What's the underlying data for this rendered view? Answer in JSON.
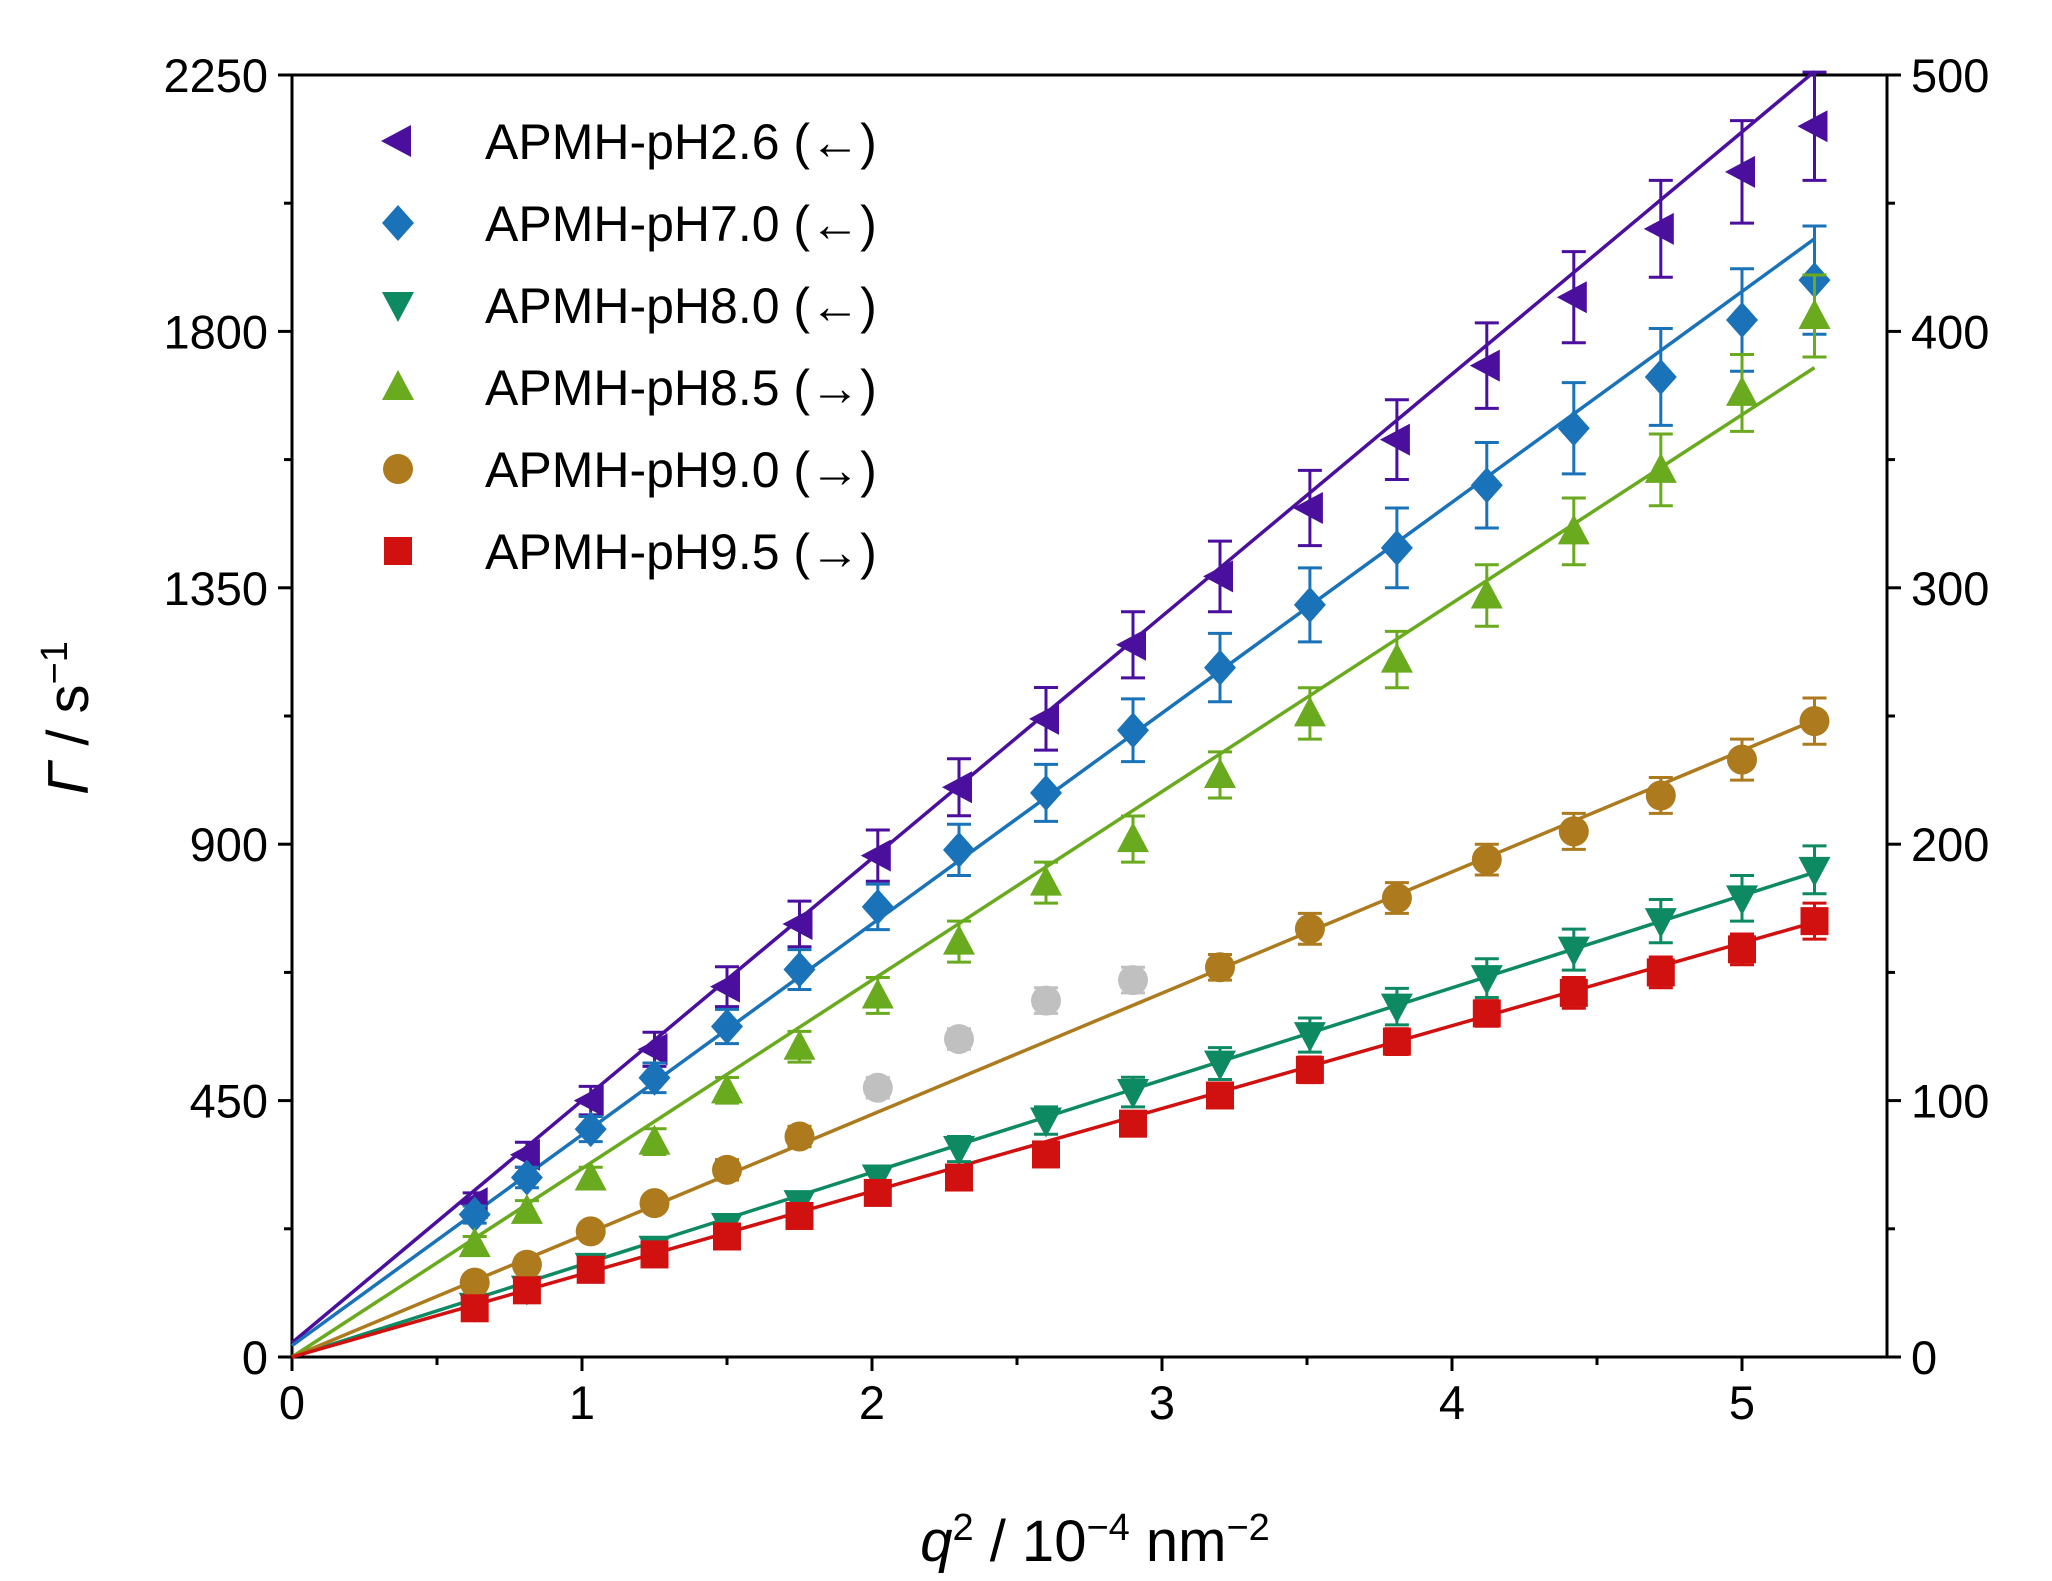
{
  "chart_data": {
    "type": "scatter",
    "title": "",
    "xlabel": {
      "var": "q",
      "sup": "2",
      "rest": " / 10",
      "sup2": "−4",
      "unit": " nm",
      "sup3": "−2"
    },
    "ylabel": {
      "var": "Γ",
      "rest": " / s",
      "sup": "−1"
    },
    "xlim": [
      0,
      5.5
    ],
    "ylim_left": [
      0,
      2250
    ],
    "ylim_right": [
      0,
      500
    ],
    "x_ticks": [
      0,
      1,
      2,
      3,
      4,
      5
    ],
    "y_left_ticks": [
      0,
      450,
      900,
      1350,
      1800,
      2250
    ],
    "y_right_ticks": [
      0,
      100,
      200,
      300,
      400,
      500
    ],
    "x": [
      0.63,
      0.81,
      1.03,
      1.25,
      1.5,
      1.75,
      2.02,
      2.3,
      2.6,
      2.9,
      3.2,
      3.51,
      3.81,
      4.12,
      4.42,
      4.72,
      5.0,
      5.25
    ],
    "series": [
      {
        "name": "APMH-pH2.6 (←)",
        "axis": "left",
        "color": "#4B0F9E",
        "marker": "tri-left",
        "values": [
          270,
          355,
          450,
          540,
          650,
          760,
          880,
          1000,
          1120,
          1250,
          1370,
          1490,
          1610,
          1740,
          1860,
          1980,
          2080,
          2160
        ],
        "errors": [
          18,
          22,
          25,
          30,
          35,
          40,
          45,
          50,
          55,
          58,
          62,
          66,
          70,
          75,
          80,
          85,
          90,
          95
        ],
        "fit": {
          "slope": 425,
          "intercept": 25
        }
      },
      {
        "name": "APMH-pH7.0 (←)",
        "axis": "left",
        "color": "#1A73B8",
        "marker": "diamond",
        "values": [
          250,
          315,
          400,
          490,
          580,
          680,
          790,
          890,
          990,
          1100,
          1210,
          1320,
          1420,
          1530,
          1630,
          1720,
          1820,
          1890
        ],
        "errors": [
          15,
          18,
          22,
          26,
          30,
          35,
          40,
          45,
          50,
          55,
          60,
          65,
          70,
          75,
          80,
          85,
          90,
          95
        ],
        "fit": {
          "slope": 370,
          "intercept": 20
        }
      },
      {
        "name": "APMH-pH8.0 (←)",
        "axis": "left",
        "color": "#0E8A63",
        "marker": "tri-down",
        "values": [
          90,
          120,
          160,
          190,
          230,
          270,
          315,
          365,
          415,
          465,
          515,
          565,
          615,
          665,
          715,
          765,
          805,
          855
        ],
        "errors": [
          10,
          12,
          14,
          15,
          17,
          18,
          20,
          22,
          24,
          26,
          28,
          30,
          32,
          34,
          36,
          38,
          40,
          42
        ],
        "fit": {
          "slope": 162,
          "intercept": 0
        }
      },
      {
        "name": "APMH-pH8.5 (→)",
        "axis": "right",
        "color": "#6AAA1E",
        "marker": "tri-up",
        "values": [
          44,
          57,
          70,
          84,
          104,
          121,
          141,
          162,
          185,
          202,
          227,
          251,
          272,
          297,
          322,
          346,
          376,
          406
        ],
        "errors": [
          3,
          4,
          4,
          5,
          5,
          6,
          7,
          8,
          8,
          9,
          9,
          10,
          11,
          12,
          13,
          14,
          15,
          16
        ],
        "fit": {
          "slope": 73.5,
          "intercept": 0
        }
      },
      {
        "name": "APMH-pH9.0 (→)",
        "axis": "right",
        "color": "#AD7A1E",
        "marker": "circle",
        "values": [
          29,
          36,
          49,
          60,
          73,
          86,
          null,
          null,
          null,
          null,
          152,
          167,
          179,
          194,
          205,
          219,
          233,
          248
        ],
        "errors": [
          3,
          3,
          3,
          3,
          4,
          4,
          null,
          null,
          null,
          null,
          5,
          6,
          6,
          6,
          7,
          7,
          8,
          9
        ],
        "fit": {
          "slope": 47.3,
          "intercept": 0
        }
      },
      {
        "name": "APMH-pH9.5 (→)",
        "axis": "right",
        "color": "#D11010",
        "marker": "square",
        "values": [
          19,
          26,
          34,
          40,
          47,
          55,
          64,
          70,
          79,
          91,
          102,
          112,
          123,
          134,
          142,
          150,
          159,
          170
        ],
        "errors": [
          2,
          2,
          2,
          3,
          3,
          3,
          3,
          4,
          4,
          4,
          4,
          5,
          5,
          5,
          6,
          6,
          6,
          7
        ],
        "fit": {
          "slope": 32.3,
          "intercept": 0
        }
      }
    ],
    "excluded_points": {
      "axis": "right",
      "color": "#C0C0C0",
      "marker": "circle",
      "x": [
        2.02,
        2.3,
        2.6,
        2.9
      ],
      "values": [
        105,
        124,
        139,
        147
      ],
      "errors": [
        4,
        4,
        5,
        5
      ]
    },
    "legend": {
      "position": "top-left"
    }
  }
}
